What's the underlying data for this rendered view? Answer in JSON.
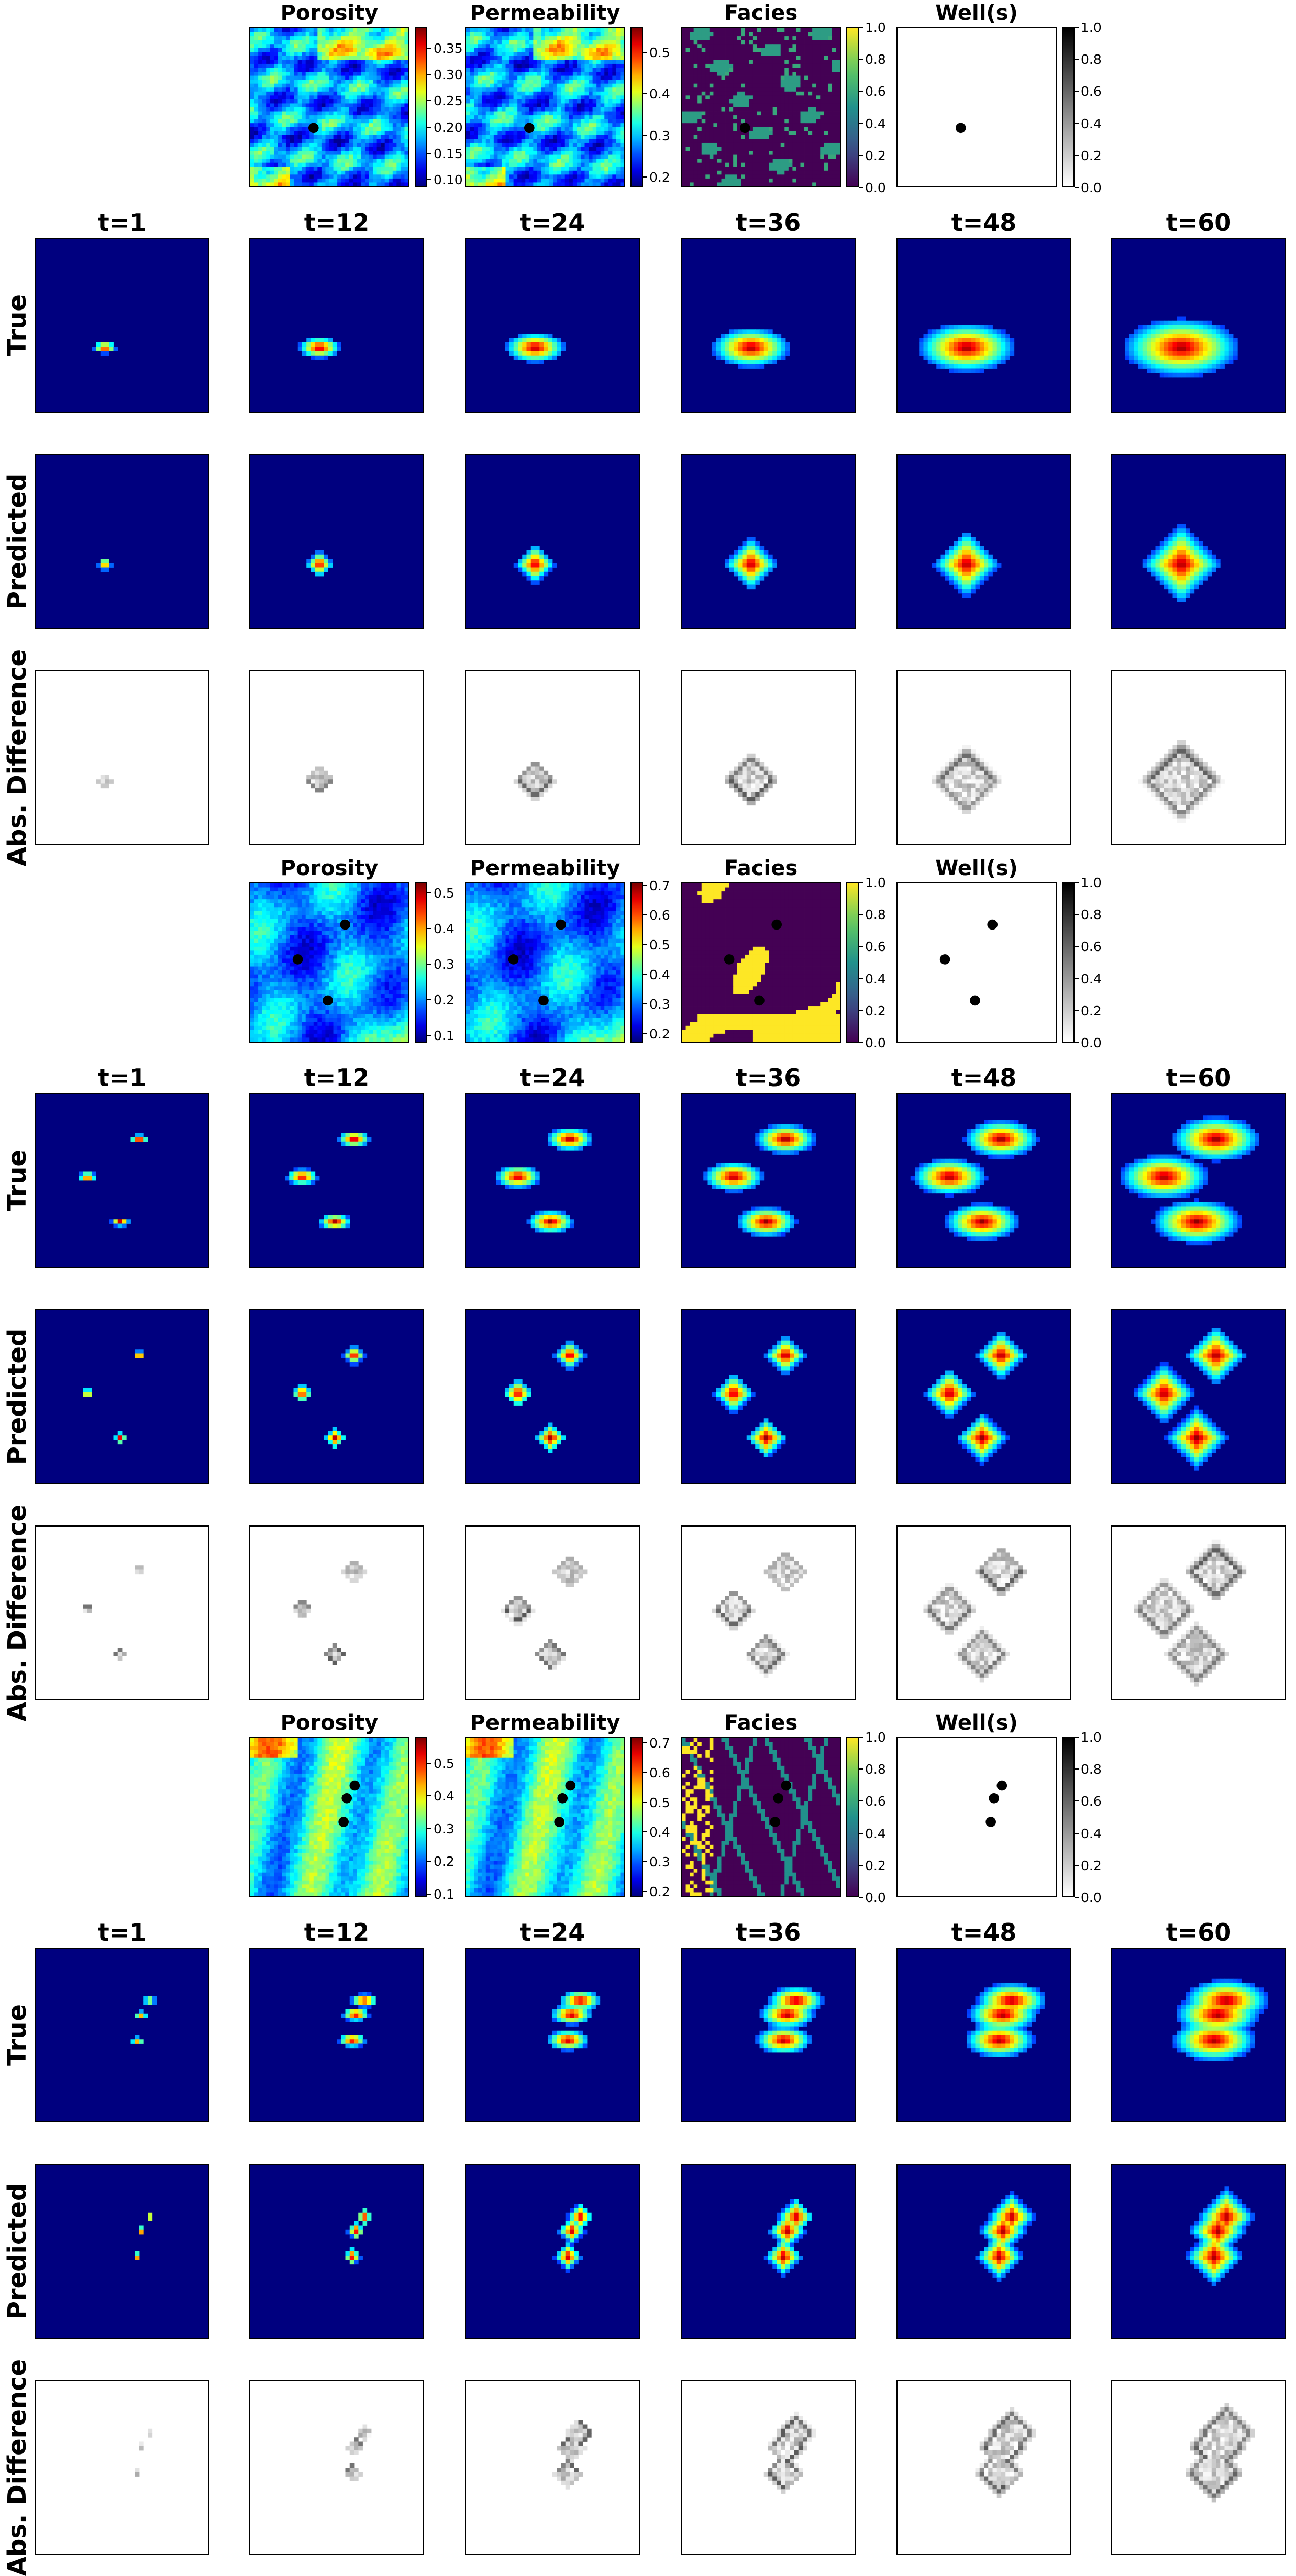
{
  "colors": {
    "jet": [
      "#00007f",
      "#0000ff",
      "#007fff",
      "#00ffff",
      "#7fff7f",
      "#ffff00",
      "#ff7f00",
      "#ff0000",
      "#7f0000"
    ],
    "viridis": [
      "#440154",
      "#3b528b",
      "#21918c",
      "#5ec962",
      "#fde725"
    ],
    "well_marker": "#000000",
    "background": "#00007f"
  },
  "chart_data": [
    {
      "type": "heatmap",
      "case": 1,
      "inputs": [
        {
          "title": "Porosity",
          "colormap": "jet",
          "colorbar_ticks": [
            "0.10",
            "0.15",
            "0.20",
            "0.25",
            "0.30",
            "0.35"
          ],
          "vmin": 0.085,
          "vmax": 0.39
        },
        {
          "title": "Permeability",
          "colormap": "jet",
          "colorbar_ticks": [
            "0.2",
            "0.3",
            "0.4",
            "0.5"
          ],
          "vmin": 0.175,
          "vmax": 0.56
        },
        {
          "title": "Facies",
          "colormap": "viridis",
          "colorbar_ticks": [
            "0.0",
            "0.2",
            "0.4",
            "0.6",
            "0.8",
            "1.0"
          ],
          "vmin": 0,
          "vmax": 1
        },
        {
          "title": "Well(s)",
          "colormap": "gray_r",
          "colorbar_ticks": [
            "0.0",
            "0.2",
            "0.4",
            "0.6",
            "0.8",
            "1.0"
          ],
          "vmin": 0,
          "vmax": 1
        }
      ],
      "wells": [
        [
          0.4,
          0.63
        ]
      ],
      "time_titles": [
        "t=1",
        "t=12",
        "t=24",
        "t=36",
        "t=48",
        "t=60"
      ],
      "row_labels": [
        "True",
        "Predicted",
        "Abs. Difference"
      ],
      "plume_radius": [
        0.05,
        0.09,
        0.13,
        0.17,
        0.21,
        0.25
      ]
    },
    {
      "type": "heatmap",
      "case": 2,
      "inputs": [
        {
          "title": "Porosity",
          "colormap": "jet",
          "colorbar_ticks": [
            "0.1",
            "0.2",
            "0.3",
            "0.4",
            "0.5"
          ],
          "vmin": 0.08,
          "vmax": 0.53
        },
        {
          "title": "Permeability",
          "colormap": "jet",
          "colorbar_ticks": [
            "0.2",
            "0.3",
            "0.4",
            "0.5",
            "0.6",
            "0.7"
          ],
          "vmin": 0.17,
          "vmax": 0.71
        },
        {
          "title": "Facies",
          "colormap": "viridis",
          "colorbar_ticks": [
            "0.0",
            "0.2",
            "0.4",
            "0.6",
            "0.8",
            "1.0"
          ],
          "vmin": 0,
          "vmax": 1
        },
        {
          "title": "Well(s)",
          "colormap": "gray_r",
          "colorbar_ticks": [
            "0.0",
            "0.2",
            "0.4",
            "0.6",
            "0.8",
            "1.0"
          ],
          "vmin": 0,
          "vmax": 1
        }
      ],
      "wells": [
        [
          0.6,
          0.26
        ],
        [
          0.3,
          0.48
        ],
        [
          0.49,
          0.74
        ]
      ],
      "time_titles": [
        "t=1",
        "t=12",
        "t=24",
        "t=36",
        "t=48",
        "t=60"
      ],
      "row_labels": [
        "True",
        "Predicted",
        "Abs. Difference"
      ],
      "plume_radius": [
        0.04,
        0.07,
        0.1,
        0.13,
        0.16,
        0.19
      ]
    },
    {
      "type": "heatmap",
      "case": 3,
      "inputs": [
        {
          "title": "Porosity",
          "colormap": "jet",
          "colorbar_ticks": [
            "0.1",
            "0.2",
            "0.3",
            "0.4",
            "0.5"
          ],
          "vmin": 0.09,
          "vmax": 0.58
        },
        {
          "title": "Permeability",
          "colormap": "jet",
          "colorbar_ticks": [
            "0.2",
            "0.3",
            "0.4",
            "0.5",
            "0.6",
            "0.7"
          ],
          "vmin": 0.18,
          "vmax": 0.72
        },
        {
          "title": "Facies",
          "colormap": "viridis",
          "colorbar_ticks": [
            "0.0",
            "0.2",
            "0.4",
            "0.6",
            "0.8",
            "1.0"
          ],
          "vmin": 0,
          "vmax": 1
        },
        {
          "title": "Well(s)",
          "colormap": "gray_r",
          "colorbar_ticks": [
            "0.0",
            "0.2",
            "0.4",
            "0.6",
            "0.8",
            "1.0"
          ],
          "vmin": 0,
          "vmax": 1
        }
      ],
      "wells": [
        [
          0.66,
          0.3
        ],
        [
          0.61,
          0.38
        ],
        [
          0.59,
          0.53
        ]
      ],
      "time_titles": [
        "t=1",
        "t=12",
        "t=24",
        "t=36",
        "t=48",
        "t=60"
      ],
      "row_labels": [
        "True",
        "Predicted",
        "Abs. Difference"
      ],
      "plume_radius": [
        0.03,
        0.06,
        0.09,
        0.12,
        0.15,
        0.18
      ]
    }
  ]
}
